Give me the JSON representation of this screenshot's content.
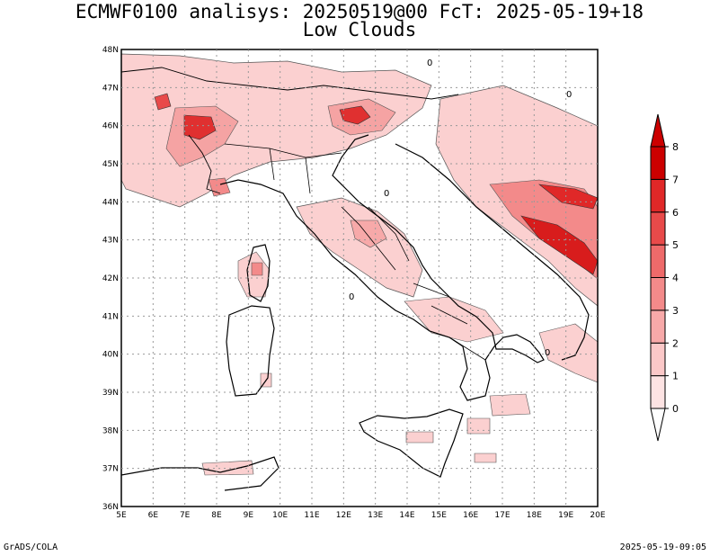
{
  "header": {
    "title_line1": "ECMWF0100 analisys: 20250519@00 FcT: 2025-05-19+18",
    "title_line2": "Low Clouds"
  },
  "map": {
    "lat_labels": [
      "48N",
      "47N",
      "46N",
      "45N",
      "44N",
      "43N",
      "42N",
      "41N",
      "40N",
      "39N",
      "38N",
      "37N",
      "36N"
    ],
    "lon_labels": [
      "5E",
      "6E",
      "7E",
      "8E",
      "9E",
      "10E",
      "11E",
      "12E",
      "13E",
      "14E",
      "15E",
      "16E",
      "17E",
      "18E",
      "19E",
      "20E"
    ],
    "grid": true,
    "contour_label": "0"
  },
  "colorbar": {
    "levels": [
      "0",
      "1",
      "2",
      "3",
      "4",
      "5",
      "6",
      "7",
      "8"
    ],
    "colors": [
      "#fde3e3",
      "#fbc8c8",
      "#f7a9a9",
      "#f38a8a",
      "#ee6a6a",
      "#e84a4a",
      "#e02828",
      "#cc0000"
    ]
  },
  "footer": {
    "left": "GrADS/COLA",
    "right": "2025-05-19-09:05"
  }
}
